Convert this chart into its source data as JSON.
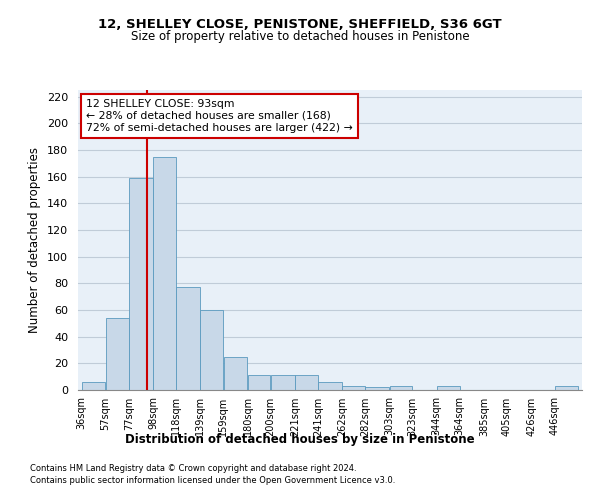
{
  "title1": "12, SHELLEY CLOSE, PENISTONE, SHEFFIELD, S36 6GT",
  "title2": "Size of property relative to detached houses in Penistone",
  "xlabel": "Distribution of detached houses by size in Penistone",
  "ylabel": "Number of detached properties",
  "bins": [
    "36sqm",
    "57sqm",
    "77sqm",
    "98sqm",
    "118sqm",
    "139sqm",
    "159sqm",
    "180sqm",
    "200sqm",
    "221sqm",
    "241sqm",
    "262sqm",
    "282sqm",
    "303sqm",
    "323sqm",
    "344sqm",
    "364sqm",
    "385sqm",
    "405sqm",
    "426sqm",
    "446sqm"
  ],
  "bin_edges": [
    36,
    57,
    77,
    98,
    118,
    139,
    159,
    180,
    200,
    221,
    241,
    262,
    282,
    303,
    323,
    344,
    364,
    385,
    405,
    426,
    446,
    467
  ],
  "values": [
    6,
    54,
    159,
    175,
    77,
    60,
    25,
    11,
    11,
    11,
    6,
    3,
    2,
    3,
    0,
    3,
    0,
    0,
    0,
    0,
    3
  ],
  "bar_color": "#c8d8e8",
  "bar_edge_color": "#5a9abf",
  "vline_x": 93,
  "vline_color": "#cc0000",
  "annotation_text": "12 SHELLEY CLOSE: 93sqm\n← 28% of detached houses are smaller (168)\n72% of semi-detached houses are larger (422) →",
  "annotation_box_color": "#ffffff",
  "annotation_box_edge": "#cc0000",
  "ylim": [
    0,
    225
  ],
  "yticks": [
    0,
    20,
    40,
    60,
    80,
    100,
    120,
    140,
    160,
    180,
    200,
    220
  ],
  "footnote1": "Contains HM Land Registry data © Crown copyright and database right 2024.",
  "footnote2": "Contains public sector information licensed under the Open Government Licence v3.0.",
  "grid_color": "#c0ccd8",
  "bg_color": "#e8f0f8"
}
